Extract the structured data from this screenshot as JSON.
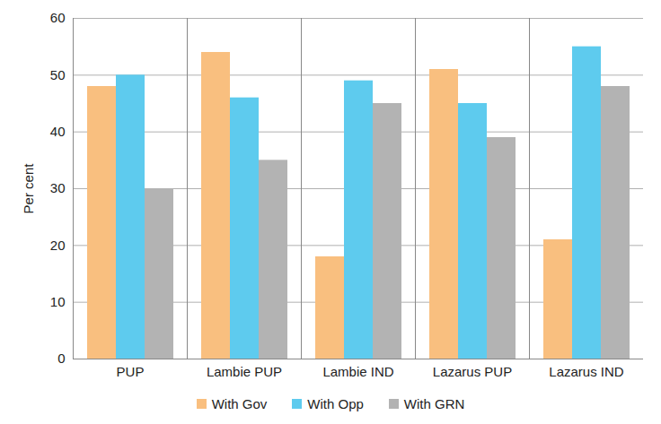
{
  "chart_data": {
    "type": "bar",
    "y_label": "Per cent",
    "categories": [
      "PUP",
      "Lambie PUP",
      "Lambie IND",
      "Lazarus PUP",
      "Lazarus IND"
    ],
    "series": [
      {
        "name": "With Gov",
        "color": "#f9bf7f",
        "values": [
          48,
          54,
          18,
          51,
          21
        ]
      },
      {
        "name": "With Opp",
        "color": "#5ecbee",
        "values": [
          50,
          46,
          49,
          45,
          55
        ]
      },
      {
        "name": "With GRN",
        "color": "#b3b3b3",
        "values": [
          30,
          35,
          45,
          39,
          48
        ]
      }
    ],
    "ylim": [
      0,
      60
    ],
    "yticks": [
      0,
      10,
      20,
      30,
      40,
      50,
      60
    ],
    "grid": true,
    "legend": "bottom"
  }
}
